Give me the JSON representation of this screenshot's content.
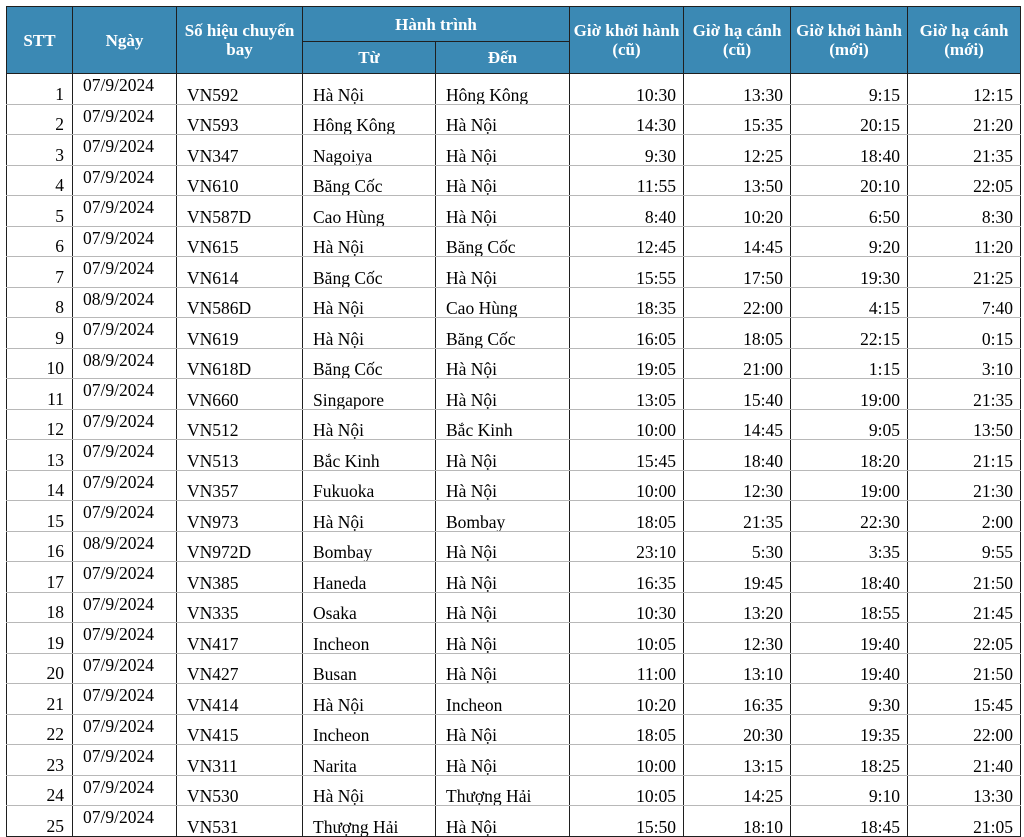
{
  "headers": {
    "stt": "STT",
    "date": "Ngày",
    "flight": "Số hiệu chuyến bay",
    "route": "Hành trình",
    "from": "Từ",
    "to": "Đến",
    "dep_old": "Giờ khởi hành (cũ)",
    "arr_old": "Giờ hạ cánh (cũ)",
    "dep_new": "Giờ khởi hành (mới)",
    "arr_new": "Giờ hạ cánh (mới)"
  },
  "colors": {
    "header_bg": "#3b89b4",
    "header_text": "#ffffff",
    "border": "#1f1f1f"
  },
  "rows": [
    [
      "1",
      "07/9/2024",
      "VN592",
      "Hà Nội",
      "Hông Kông",
      "10:30",
      "13:30",
      "9:15",
      "12:15"
    ],
    [
      "2",
      "07/9/2024",
      "VN593",
      "Hông Kông",
      "Hà Nội",
      "14:30",
      "15:35",
      "20:15",
      "21:20"
    ],
    [
      "3",
      "07/9/2024",
      "VN347",
      "Nagoiya",
      "Hà Nội",
      "9:30",
      "12:25",
      "18:40",
      "21:35"
    ],
    [
      "4",
      "07/9/2024",
      "VN610",
      "Băng Cốc",
      "Hà Nội",
      "11:55",
      "13:50",
      "20:10",
      "22:05"
    ],
    [
      "5",
      "07/9/2024",
      "VN587D",
      "Cao Hùng",
      "Hà Nội",
      "8:40",
      "10:20",
      "6:50",
      "8:30"
    ],
    [
      "6",
      "07/9/2024",
      "VN615",
      "Hà Nội",
      "Băng Cốc",
      "12:45",
      "14:45",
      "9:20",
      "11:20"
    ],
    [
      "7",
      "07/9/2024",
      "VN614",
      "Băng Cốc",
      "Hà Nội",
      "15:55",
      "17:50",
      "19:30",
      "21:25"
    ],
    [
      "8",
      "08/9/2024",
      "VN586D",
      "Hà Nội",
      "Cao Hùng",
      "18:35",
      "22:00",
      "4:15",
      "7:40"
    ],
    [
      "9",
      "07/9/2024",
      "VN619",
      "Hà Nội",
      "Băng Cốc",
      "16:05",
      "18:05",
      "22:15",
      "0:15"
    ],
    [
      "10",
      "08/9/2024",
      "VN618D",
      "Băng Cốc",
      "Hà Nội",
      "19:05",
      "21:00",
      "1:15",
      "3:10"
    ],
    [
      "11",
      "07/9/2024",
      "VN660",
      "Singapore",
      "Hà Nội",
      "13:05",
      "15:40",
      "19:00",
      "21:35"
    ],
    [
      "12",
      "07/9/2024",
      "VN512",
      "Hà Nội",
      "Bắc Kinh",
      "10:00",
      "14:45",
      "9:05",
      "13:50"
    ],
    [
      "13",
      "07/9/2024",
      "VN513",
      "Bắc Kinh",
      "Hà Nội",
      "15:45",
      "18:40",
      "18:20",
      "21:15"
    ],
    [
      "14",
      "07/9/2024",
      "VN357",
      "Fukuoka",
      "Hà Nội",
      "10:00",
      "12:30",
      "19:00",
      "21:30"
    ],
    [
      "15",
      "07/9/2024",
      "VN973",
      "Hà Nội",
      "Bombay",
      "18:05",
      "21:35",
      "22:30",
      "2:00"
    ],
    [
      "16",
      "08/9/2024",
      "VN972D",
      "Bombay",
      "Hà Nội",
      "23:10",
      "5:30",
      "3:35",
      "9:55"
    ],
    [
      "17",
      "07/9/2024",
      "VN385",
      "Haneda",
      "Hà Nội",
      "16:35",
      "19:45",
      "18:40",
      "21:50"
    ],
    [
      "18",
      "07/9/2024",
      "VN335",
      "Osaka",
      "Hà Nội",
      "10:30",
      "13:20",
      "18:55",
      "21:45"
    ],
    [
      "19",
      "07/9/2024",
      "VN417",
      "Incheon",
      "Hà Nội",
      "10:05",
      "12:30",
      "19:40",
      "22:05"
    ],
    [
      "20",
      "07/9/2024",
      "VN427",
      "Busan",
      "Hà Nội",
      "11:00",
      "13:10",
      "19:40",
      "21:50"
    ],
    [
      "21",
      "07/9/2024",
      "VN414",
      "Hà Nội",
      "Incheon",
      "10:20",
      "16:35",
      "9:30",
      "15:45"
    ],
    [
      "22",
      "07/9/2024",
      "VN415",
      "Incheon",
      "Hà Nội",
      "18:05",
      "20:30",
      "19:35",
      "22:00"
    ],
    [
      "23",
      "07/9/2024",
      "VN311",
      "Narita",
      "Hà Nội",
      "10:00",
      "13:15",
      "18:25",
      "21:40"
    ],
    [
      "24",
      "07/9/2024",
      "VN530",
      "Hà Nội",
      "Thượng Hải",
      "10:05",
      "14:25",
      "9:10",
      "13:30"
    ],
    [
      "25",
      "07/9/2024",
      "VN531",
      "Thượng Hải",
      "Hà Nội",
      "15:50",
      "18:10",
      "18:45",
      "21:05"
    ]
  ]
}
